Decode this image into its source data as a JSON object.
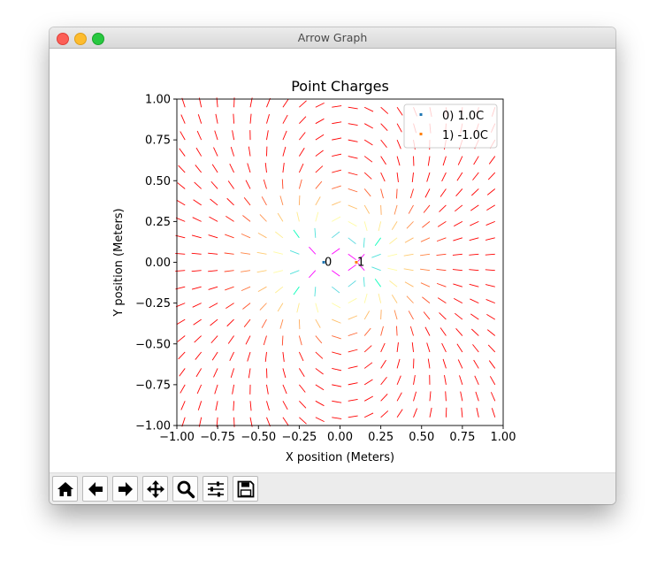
{
  "window": {
    "title": "Arrow Graph"
  },
  "toolbar": [
    {
      "name": "home-icon"
    },
    {
      "name": "back-arrow-icon"
    },
    {
      "name": "forward-arrow-icon"
    },
    {
      "name": "pan-icon"
    },
    {
      "name": "zoom-icon"
    },
    {
      "name": "subplots-config-icon"
    },
    {
      "name": "save-icon"
    }
  ],
  "chart_data": {
    "type": "quiver",
    "title": "Point Charges",
    "xlabel": "X position (Meters)",
    "ylabel": "Y position (Meters)",
    "xlim": [
      -1.0,
      1.0
    ],
    "ylim": [
      -1.0,
      1.0
    ],
    "xticks": [
      "−1.00",
      "−0.75",
      "−0.50",
      "−0.25",
      "0.00",
      "0.25",
      "0.50",
      "0.75",
      "1.00"
    ],
    "yticks": [
      "−1.00",
      "−0.75",
      "−0.50",
      "−0.25",
      "0.00",
      "0.25",
      "0.50",
      "0.75",
      "1.00"
    ],
    "grid": false,
    "legend_position": "upper right",
    "colormap": "rainbow",
    "charges": [
      {
        "label": "0",
        "legend": "0) 1.0C",
        "x": -0.1,
        "y": 0.0,
        "q": 1.0,
        "color": "#1f77b4"
      },
      {
        "label": "1",
        "legend": "1) -1.0C",
        "x": 0.1,
        "y": 0.0,
        "q": -1.0,
        "color": "#ff7f0e"
      }
    ],
    "field_grid": {
      "xmin": -0.95,
      "xmax": 0.95,
      "ymin": -0.95,
      "ymax": 0.95,
      "n": 20
    }
  }
}
